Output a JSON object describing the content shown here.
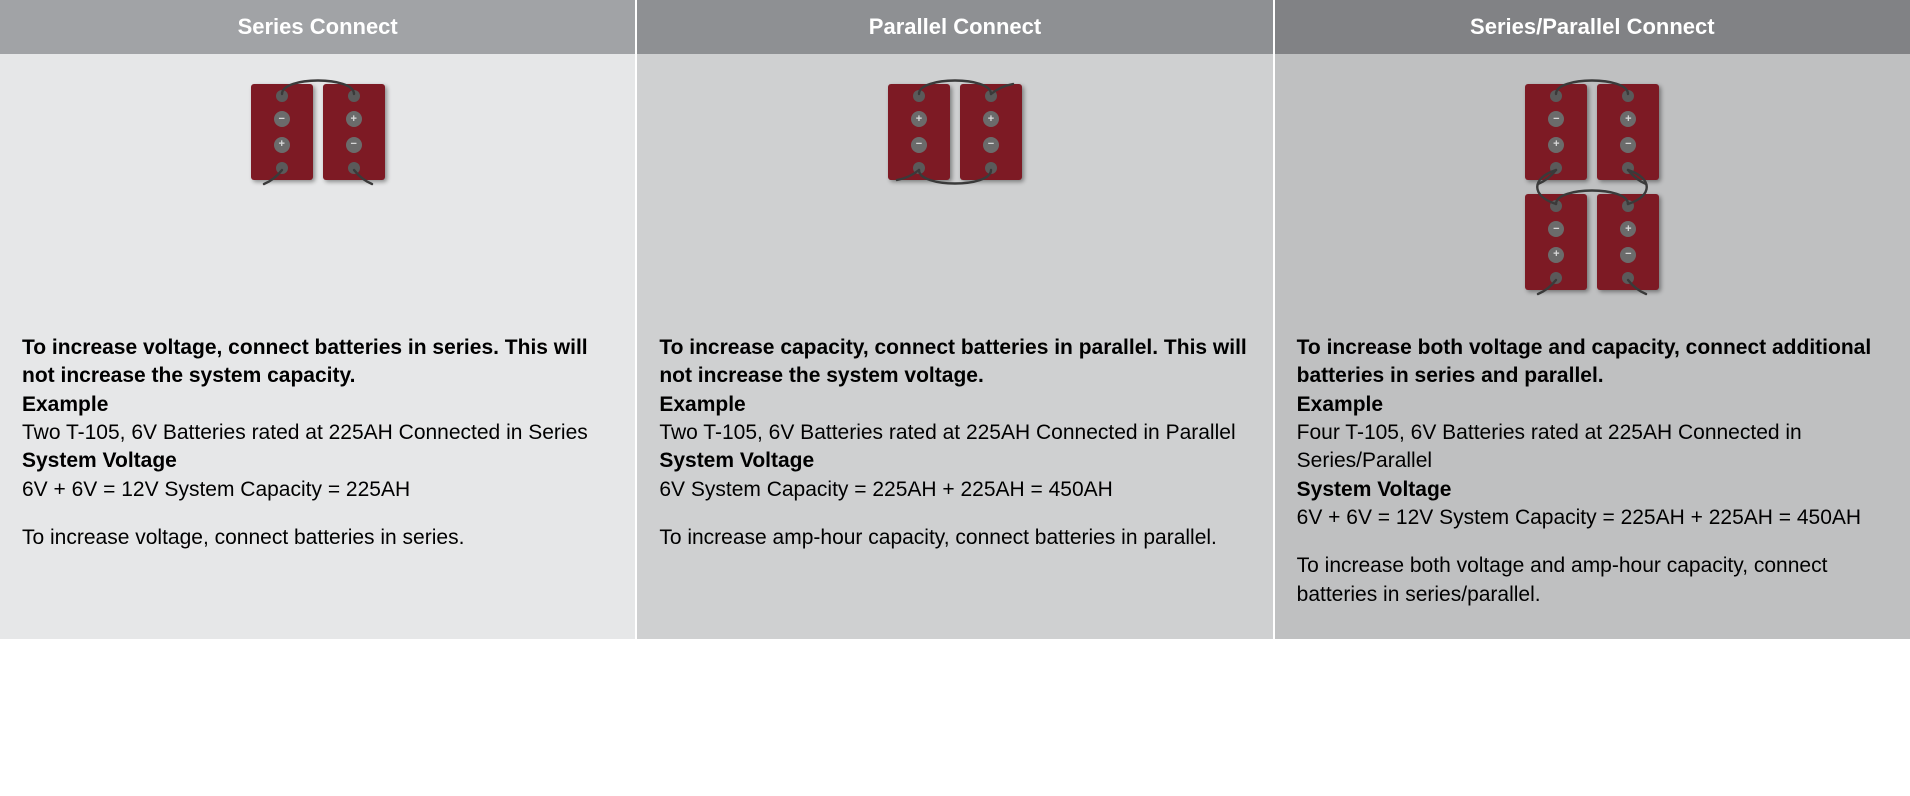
{
  "colors": {
    "header_bg": [
      "#a1a3a6",
      "#8e9093",
      "#818285"
    ],
    "body_bg": [
      "#e6e7e8",
      "#cfd0d1",
      "#bfc0c1"
    ],
    "battery_fill": "#7d1a24",
    "wire_color": "#3a3a3a",
    "terminal_dot": "#5a5a5a"
  },
  "columns": [
    {
      "key": "series",
      "title": "Series Connect",
      "diagram": {
        "rows": 1,
        "cols": 2,
        "polarity": [
          [
            "-",
            "+",
            "+",
            "-"
          ],
          [
            "-",
            "+",
            "+",
            "-"
          ]
        ],
        "connection": "series"
      },
      "lead": "To increase voltage, connect batteries in series. This will not increase the system capacity.",
      "example_label": "Example",
      "example_text": "Two T-105, 6V Batteries rated at 225AH Connected in Series",
      "voltage_label": "System Voltage",
      "voltage_text": "6V + 6V = 12V System Capacity = 225AH",
      "summary": "To increase voltage, connect batteries in series."
    },
    {
      "key": "parallel",
      "title": "Parallel Connect",
      "diagram": {
        "rows": 1,
        "cols": 2,
        "polarity": [
          [
            "+",
            "+",
            "-",
            "-"
          ],
          [
            "+",
            "+",
            "-",
            "-"
          ]
        ],
        "connection": "parallel"
      },
      "lead": "To increase capacity, connect batteries in parallel. This will not increase the system voltage.",
      "example_label": "Example",
      "example_text": "Two T-105, 6V Batteries rated at 225AH Connected in Parallel",
      "voltage_label": "System Voltage",
      "voltage_text": "6V System Capacity = 225AH + 225AH = 450AH",
      "summary": "To increase amp-hour capacity, connect batteries in parallel."
    },
    {
      "key": "series-parallel",
      "title": "Series/Parallel Connect",
      "diagram": {
        "rows": 2,
        "cols": 2,
        "polarity": [
          [
            "-",
            "+",
            "+",
            "-"
          ],
          [
            "-",
            "+",
            "+",
            "-"
          ]
        ],
        "connection": "series-parallel"
      },
      "lead": "To increase both voltage and capacity, connect additional batteries in series and parallel.",
      "example_label": "Example",
      "example_text": "Four T-105, 6V Batteries rated at 225AH Connected in Series/Parallel",
      "voltage_label": "System Voltage",
      "voltage_text": "6V + 6V = 12V System Capacity = 225AH + 225AH = 450AH",
      "summary": "To increase both voltage and amp-hour capacity, connect batteries in series/parallel."
    }
  ]
}
